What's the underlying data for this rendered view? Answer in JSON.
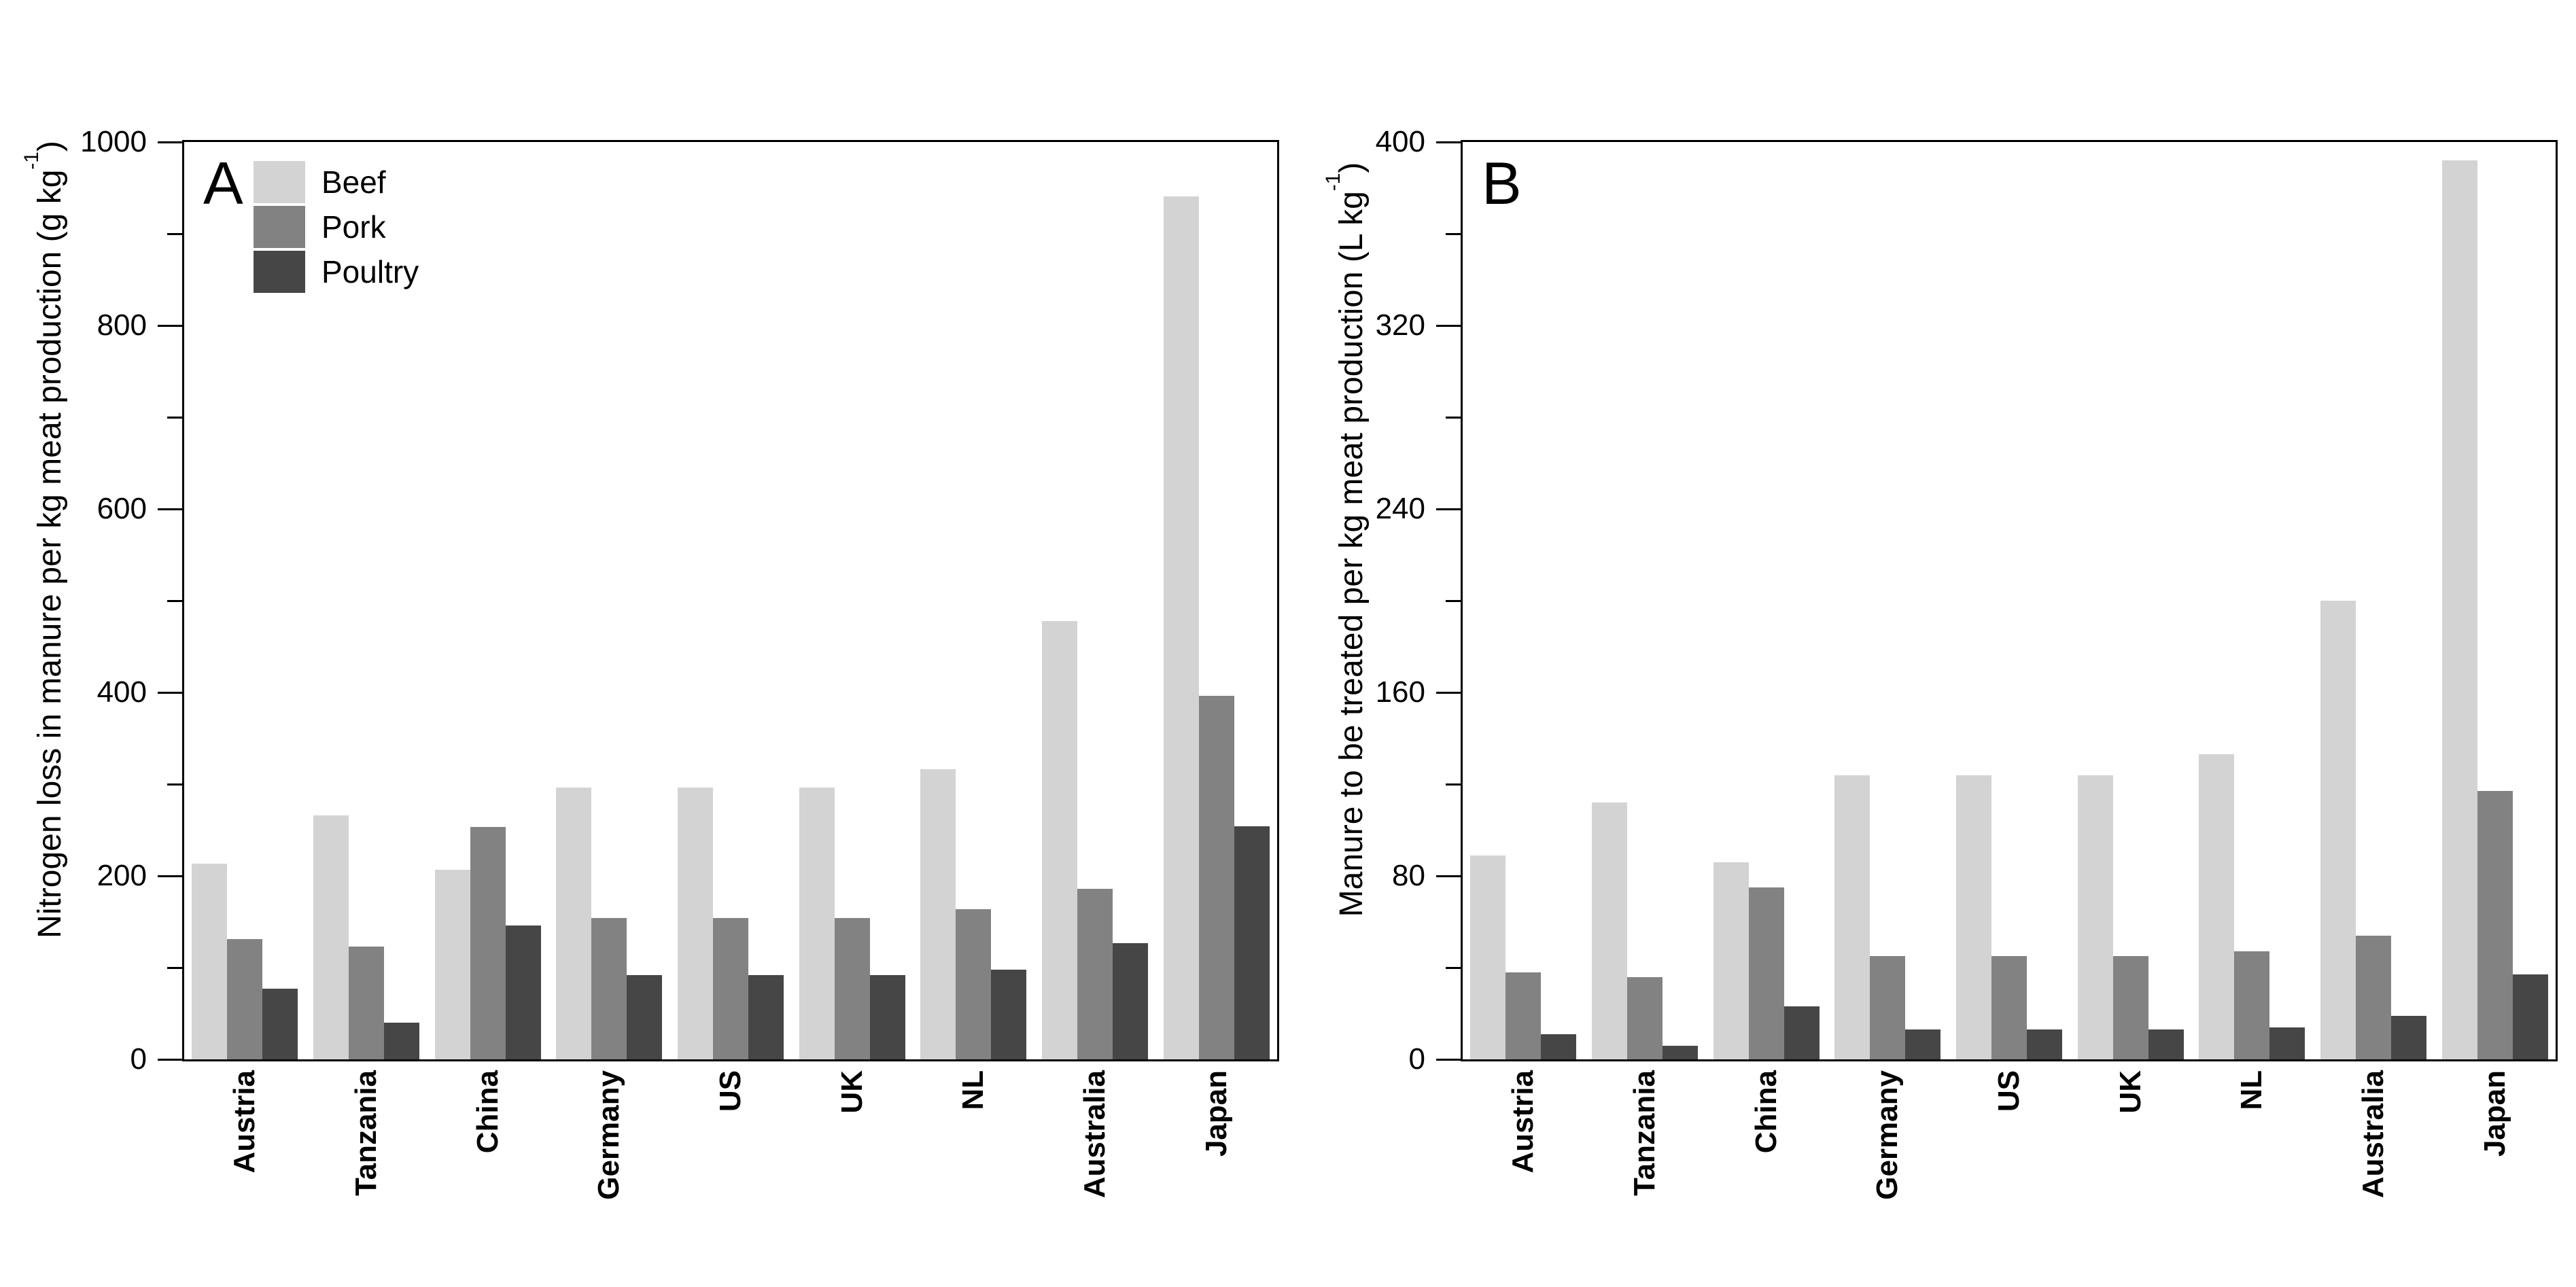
{
  "figure": {
    "background": "#ffffff",
    "axis_color": "#000000",
    "legend": {
      "position": "upper-left-panel-A",
      "entries": [
        "Beef",
        "Pork",
        "Poultry"
      ]
    },
    "series_colors": {
      "Beef": "#d3d3d3",
      "Pork": "#828282",
      "Poultry": "#464646"
    }
  },
  "chart_data": [
    {
      "type": "bar",
      "panel_label": "A",
      "ylabel": "Nitrogen loss in manure per kg meat production (g kg⁻¹)",
      "xlabel": "",
      "categories": [
        "Austria",
        "Tanzania",
        "China",
        "Germany",
        "US",
        "UK",
        "NL",
        "Australia",
        "Japan"
      ],
      "series": [
        {
          "name": "Beef",
          "color": "#d3d3d3",
          "values": [
            213,
            266,
            207,
            296,
            296,
            296,
            316,
            478,
            941
          ]
        },
        {
          "name": "Pork",
          "color": "#828282",
          "values": [
            131,
            123,
            253,
            154,
            154,
            154,
            164,
            186,
            396
          ]
        },
        {
          "name": "Poultry",
          "color": "#464646",
          "values": [
            77,
            40,
            146,
            92,
            92,
            92,
            98,
            127,
            254
          ]
        }
      ],
      "ylim": [
        0,
        1000
      ],
      "yticks_major": [
        0,
        200,
        400,
        600,
        800,
        1000
      ],
      "yticks_minor": [
        100,
        300,
        500,
        700,
        900
      ],
      "grid": false,
      "legend_position": "upper left",
      "frame": true
    },
    {
      "type": "bar",
      "panel_label": "B",
      "ylabel": "Manure to be treated per kg meat production (L kg⁻¹)",
      "xlabel": "",
      "categories": [
        "Austria",
        "Tanzania",
        "China",
        "Germany",
        "US",
        "UK",
        "NL",
        "Australia",
        "Japan"
      ],
      "series": [
        {
          "name": "Beef",
          "color": "#d3d3d3",
          "values": [
            89,
            112,
            86,
            124,
            124,
            124,
            133,
            200,
            392
          ]
        },
        {
          "name": "Pork",
          "color": "#828282",
          "values": [
            38,
            36,
            75,
            45,
            45,
            45,
            47,
            54,
            117
          ]
        },
        {
          "name": "Poultry",
          "color": "#464646",
          "values": [
            11,
            6,
            23,
            13,
            13,
            13,
            14,
            19,
            37
          ]
        }
      ],
      "ylim": [
        0,
        400
      ],
      "yticks_major": [
        0,
        80,
        160,
        240,
        320,
        400
      ],
      "yticks_minor": [
        40,
        120,
        200,
        280,
        360
      ],
      "grid": false,
      "legend_position": "none",
      "frame": true
    }
  ]
}
